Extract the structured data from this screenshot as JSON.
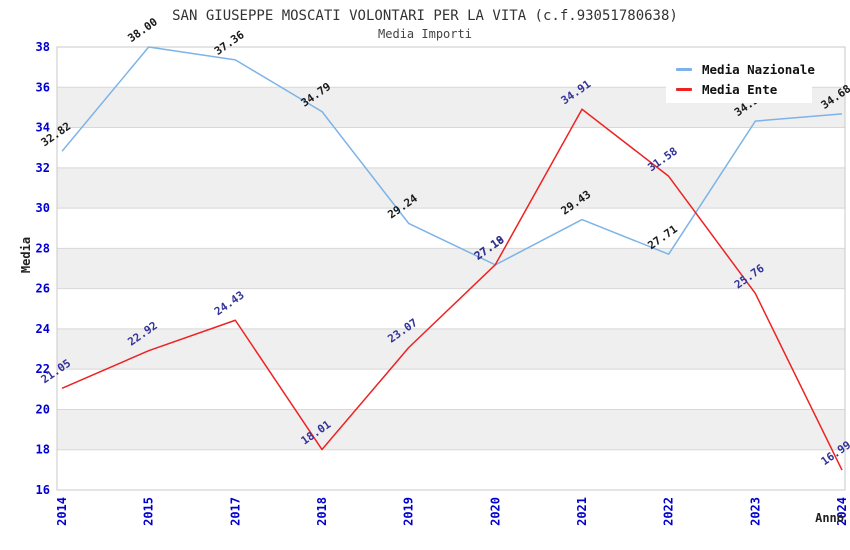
{
  "header": {
    "title": "SAN GIUSEPPE MOSCATI VOLONTARI PER LA VITA (c.f.93051780638)",
    "subtitle": "Media Importi"
  },
  "chart_data": {
    "type": "line",
    "title": "SAN GIUSEPPE MOSCATI VOLONTARI PER LA VITA (c.f.93051780638)",
    "subtitle": "Media Importi",
    "xlabel": "Anno",
    "ylabel": "Media",
    "categories": [
      "2014",
      "2015",
      "2017",
      "2018",
      "2019",
      "2020",
      "2021",
      "2022",
      "2023",
      "2024"
    ],
    "series": [
      {
        "name": "Media Nazionale",
        "color": "#7db3e8",
        "label_color": "#1a1a1a",
        "values": [
          32.82,
          38.0,
          37.36,
          34.79,
          29.24,
          27.18,
          29.43,
          27.71,
          34.32,
          34.68
        ]
      },
      {
        "name": "Media Ente",
        "color": "#ee2222",
        "label_color": "#333399",
        "values": [
          21.05,
          22.92,
          24.43,
          18.01,
          23.07,
          27.19,
          34.91,
          31.58,
          25.76,
          16.99
        ]
      }
    ],
    "ylim": [
      16,
      38
    ],
    "y_ticks": [
      16,
      18,
      20,
      22,
      24,
      26,
      28,
      30,
      32,
      34,
      36,
      38
    ],
    "grid": "alternating-horizontal-bands",
    "band_color": "#efefef",
    "grid_line_color": "#d8d8d8",
    "border_color": "#c8c8c8",
    "tick_label_color": "#0000d0",
    "legend_position": "top-right"
  }
}
